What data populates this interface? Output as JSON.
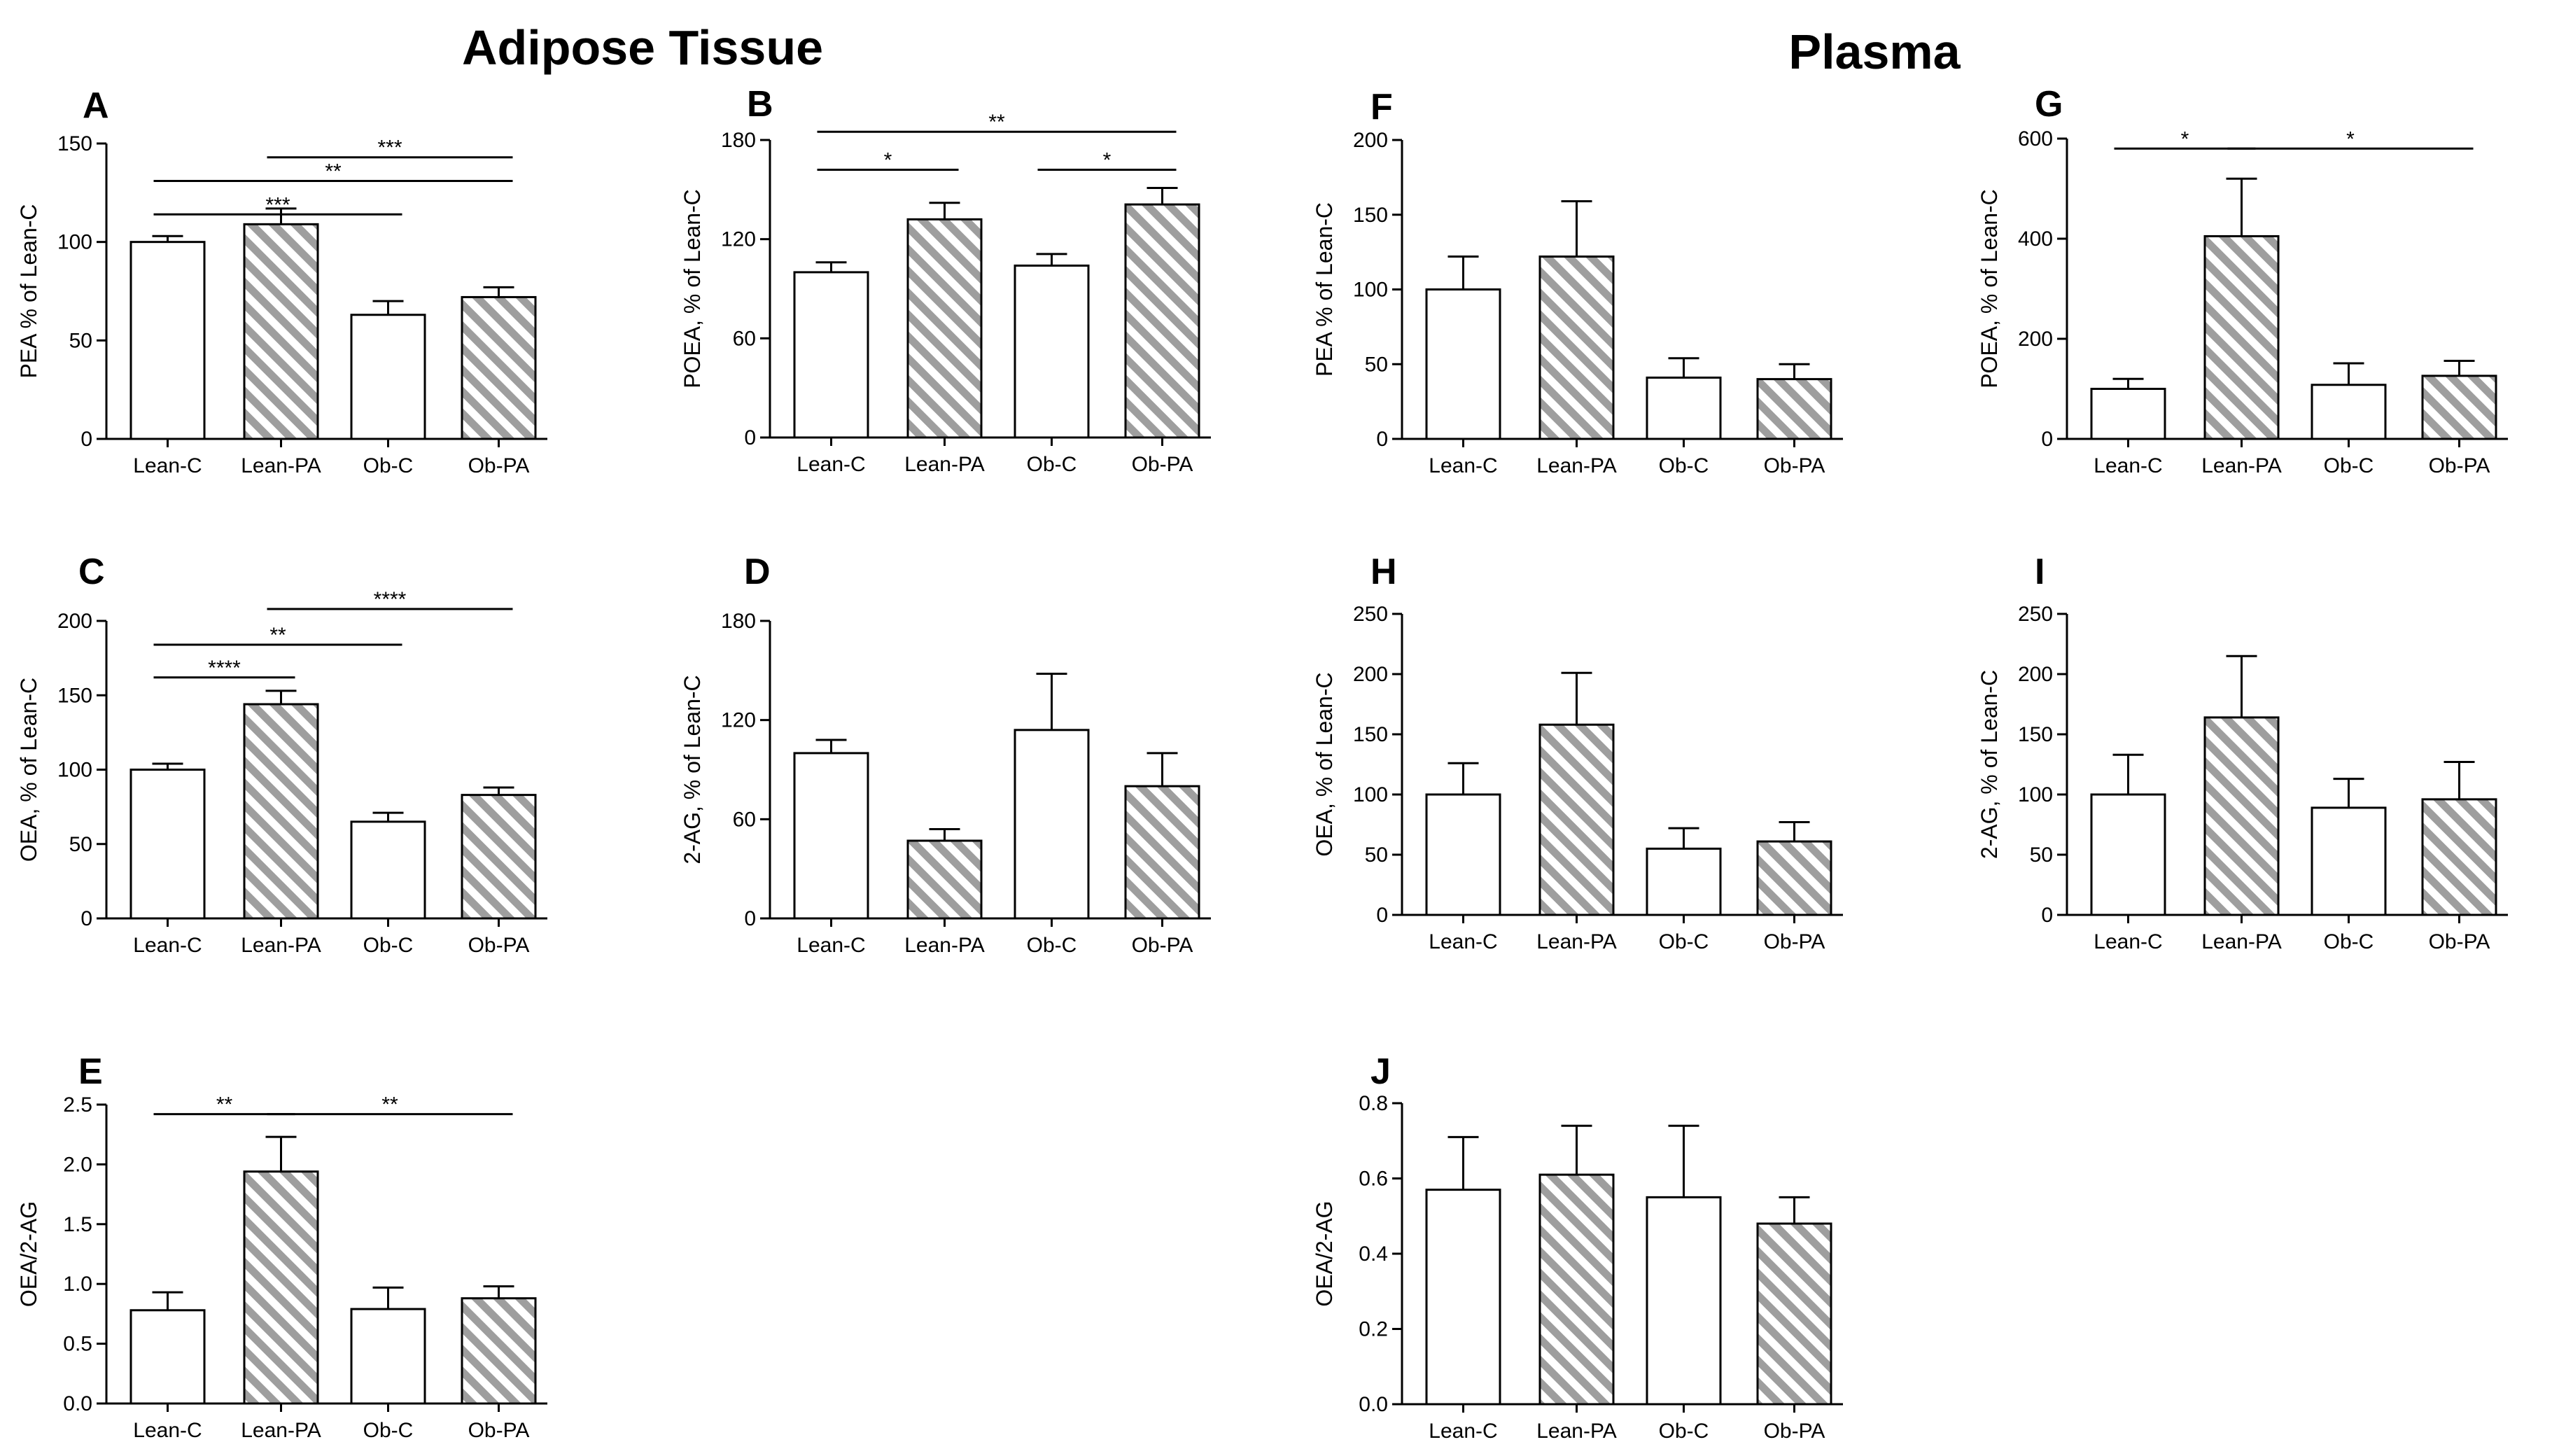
{
  "titles": {
    "left": "Adipose Tissue",
    "right": "Plasma"
  },
  "chart_data": [
    {
      "id": "A",
      "type": "bar",
      "title": "A",
      "ylabel": "PEA % of Lean-C",
      "categories": [
        "Lean-C",
        "Lean-PA",
        "Ob-C",
        "Ob-PA"
      ],
      "values": [
        100,
        109,
        63,
        72
      ],
      "errors": [
        3,
        8,
        7,
        5
      ],
      "patterns": [
        "open",
        "hatched",
        "open",
        "hatched"
      ],
      "ylim": [
        0,
        150
      ],
      "yticks": [
        0,
        50,
        100,
        150
      ],
      "ytick_labels": [
        "0",
        "50",
        "100",
        "150"
      ],
      "significance": [
        {
          "from": 2,
          "to": 4,
          "label": "***",
          "level": 143
        },
        {
          "from": 1,
          "to": 4,
          "label": "**",
          "level": 131
        },
        {
          "from": 1,
          "to": 3,
          "label": "***",
          "level": 114
        }
      ]
    },
    {
      "id": "B",
      "type": "bar",
      "title": "B",
      "ylabel": "POEA, % of Lean-C",
      "categories": [
        "Lean-C",
        "Lean-PA",
        "Ob-C",
        "Ob-PA"
      ],
      "values": [
        100,
        132,
        104,
        141
      ],
      "errors": [
        6,
        10,
        7,
        10
      ],
      "patterns": [
        "open",
        "hatched",
        "open",
        "hatched"
      ],
      "ylim": [
        0,
        180
      ],
      "yticks": [
        0,
        60,
        120,
        180
      ],
      "ytick_labels": [
        "0",
        "60",
        "120",
        "180"
      ],
      "significance": [
        {
          "from": 1,
          "to": 4,
          "label": "**",
          "level": 185
        },
        {
          "from": 1,
          "to": 2,
          "label": "*",
          "level": 162
        },
        {
          "from": 3,
          "to": 4,
          "label": "*",
          "level": 162
        }
      ]
    },
    {
      "id": "F",
      "type": "bar",
      "title": "F",
      "ylabel": "PEA % of Lean-C",
      "categories": [
        "Lean-C",
        "Lean-PA",
        "Ob-C",
        "Ob-PA"
      ],
      "values": [
        100,
        122,
        41,
        40
      ],
      "errors": [
        22,
        37,
        13,
        10
      ],
      "patterns": [
        "open",
        "hatched",
        "open",
        "hatched"
      ],
      "ylim": [
        0,
        200
      ],
      "yticks": [
        0,
        50,
        100,
        150,
        200
      ],
      "ytick_labels": [
        "0",
        "50",
        "100",
        "150",
        "200"
      ],
      "significance": []
    },
    {
      "id": "G",
      "type": "bar",
      "title": "G",
      "ylabel": "POEA, % of Lean-C",
      "categories": [
        "Lean-C",
        "Lean-PA",
        "Ob-C",
        "Ob-PA"
      ],
      "values": [
        100,
        405,
        108,
        126
      ],
      "errors": [
        20,
        115,
        43,
        30
      ],
      "patterns": [
        "open",
        "hatched",
        "open",
        "hatched"
      ],
      "ylim": [
        0,
        600
      ],
      "yticks": [
        0,
        200,
        400,
        600
      ],
      "ytick_labels": [
        "0",
        "200",
        "400",
        "600"
      ],
      "significance": [
        {
          "from": 1,
          "to": 2,
          "label": "*",
          "level": 580
        },
        {
          "from": 2,
          "to": 4,
          "label": "*",
          "level": 580
        }
      ]
    },
    {
      "id": "C",
      "type": "bar",
      "title": "C",
      "ylabel": "OEA, % of Lean-C",
      "categories": [
        "Lean-C",
        "Lean-PA",
        "Ob-C",
        "Ob-PA"
      ],
      "values": [
        100,
        144,
        65,
        83
      ],
      "errors": [
        4,
        9,
        6,
        5
      ],
      "patterns": [
        "open",
        "hatched",
        "open",
        "hatched"
      ],
      "ylim": [
        0,
        200
      ],
      "yticks": [
        0,
        50,
        100,
        150,
        200
      ],
      "ytick_labels": [
        "0",
        "50",
        "100",
        "150",
        "200"
      ],
      "significance": [
        {
          "from": 2,
          "to": 4,
          "label": "****",
          "level": 208
        },
        {
          "from": 1,
          "to": 3,
          "label": "**",
          "level": 184
        },
        {
          "from": 1,
          "to": 2,
          "label": "****",
          "level": 162
        }
      ]
    },
    {
      "id": "D",
      "type": "bar",
      "title": "D",
      "ylabel": "2-AG, % of Lean-C",
      "categories": [
        "Lean-C",
        "Lean-PA",
        "Ob-C",
        "Ob-PA"
      ],
      "values": [
        100,
        47,
        114,
        80
      ],
      "errors": [
        8,
        7,
        34,
        20
      ],
      "patterns": [
        "open",
        "hatched",
        "open",
        "hatched"
      ],
      "ylim": [
        0,
        180
      ],
      "yticks": [
        0,
        60,
        120,
        180
      ],
      "ytick_labels": [
        "0",
        "60",
        "120",
        "180"
      ],
      "significance": []
    },
    {
      "id": "H",
      "type": "bar",
      "title": "H",
      "ylabel": "OEA, % of Lean-C",
      "categories": [
        "Lean-C",
        "Lean-PA",
        "Ob-C",
        "Ob-PA"
      ],
      "values": [
        100,
        158,
        55,
        61
      ],
      "errors": [
        26,
        43,
        17,
        16
      ],
      "patterns": [
        "open",
        "hatched",
        "open",
        "hatched"
      ],
      "ylim": [
        0,
        250
      ],
      "yticks": [
        0,
        50,
        100,
        150,
        200,
        250
      ],
      "ytick_labels": [
        "0",
        "50",
        "100",
        "150",
        "200",
        "250"
      ],
      "significance": []
    },
    {
      "id": "I",
      "type": "bar",
      "title": "I",
      "ylabel": "2-AG, % of Lean-C",
      "categories": [
        "Lean-C",
        "Lean-PA",
        "Ob-C",
        "Ob-PA"
      ],
      "values": [
        100,
        164,
        89,
        96
      ],
      "errors": [
        33,
        51,
        24,
        31
      ],
      "patterns": [
        "open",
        "hatched",
        "open",
        "hatched"
      ],
      "ylim": [
        0,
        250
      ],
      "yticks": [
        0,
        50,
        100,
        150,
        200,
        250
      ],
      "ytick_labels": [
        "0",
        "50",
        "100",
        "150",
        "200",
        "250"
      ],
      "significance": []
    },
    {
      "id": "E",
      "type": "bar",
      "title": "E",
      "ylabel": "OEA/2-AG",
      "categories": [
        "Lean-C",
        "Lean-PA",
        "Ob-C",
        "Ob-PA"
      ],
      "values": [
        0.78,
        1.94,
        0.79,
        0.88
      ],
      "errors": [
        0.15,
        0.29,
        0.18,
        0.1
      ],
      "patterns": [
        "open",
        "hatched",
        "open",
        "hatched"
      ],
      "ylim": [
        0,
        2.5
      ],
      "yticks": [
        0,
        0.5,
        1.0,
        1.5,
        2.0,
        2.5
      ],
      "ytick_labels": [
        "0.0",
        "0.5",
        "1.0",
        "1.5",
        "2.0",
        "2.5"
      ],
      "significance": [
        {
          "from": 1,
          "to": 2,
          "label": "**",
          "level": 2.42
        },
        {
          "from": 2,
          "to": 4,
          "label": "**",
          "level": 2.42
        }
      ]
    },
    {
      "id": "J",
      "type": "bar",
      "title": "J",
      "ylabel": "OEA/2-AG",
      "categories": [
        "Lean-C",
        "Lean-PA",
        "Ob-C",
        "Ob-PA"
      ],
      "values": [
        0.57,
        0.61,
        0.55,
        0.48
      ],
      "errors": [
        0.14,
        0.13,
        0.19,
        0.07
      ],
      "patterns": [
        "open",
        "hatched",
        "open",
        "hatched"
      ],
      "ylim": [
        0,
        0.8
      ],
      "yticks": [
        0,
        0.2,
        0.4,
        0.6,
        0.8
      ],
      "ytick_labels": [
        "0.0",
        "0.2",
        "0.4",
        "0.6",
        "0.8"
      ],
      "significance": []
    }
  ]
}
